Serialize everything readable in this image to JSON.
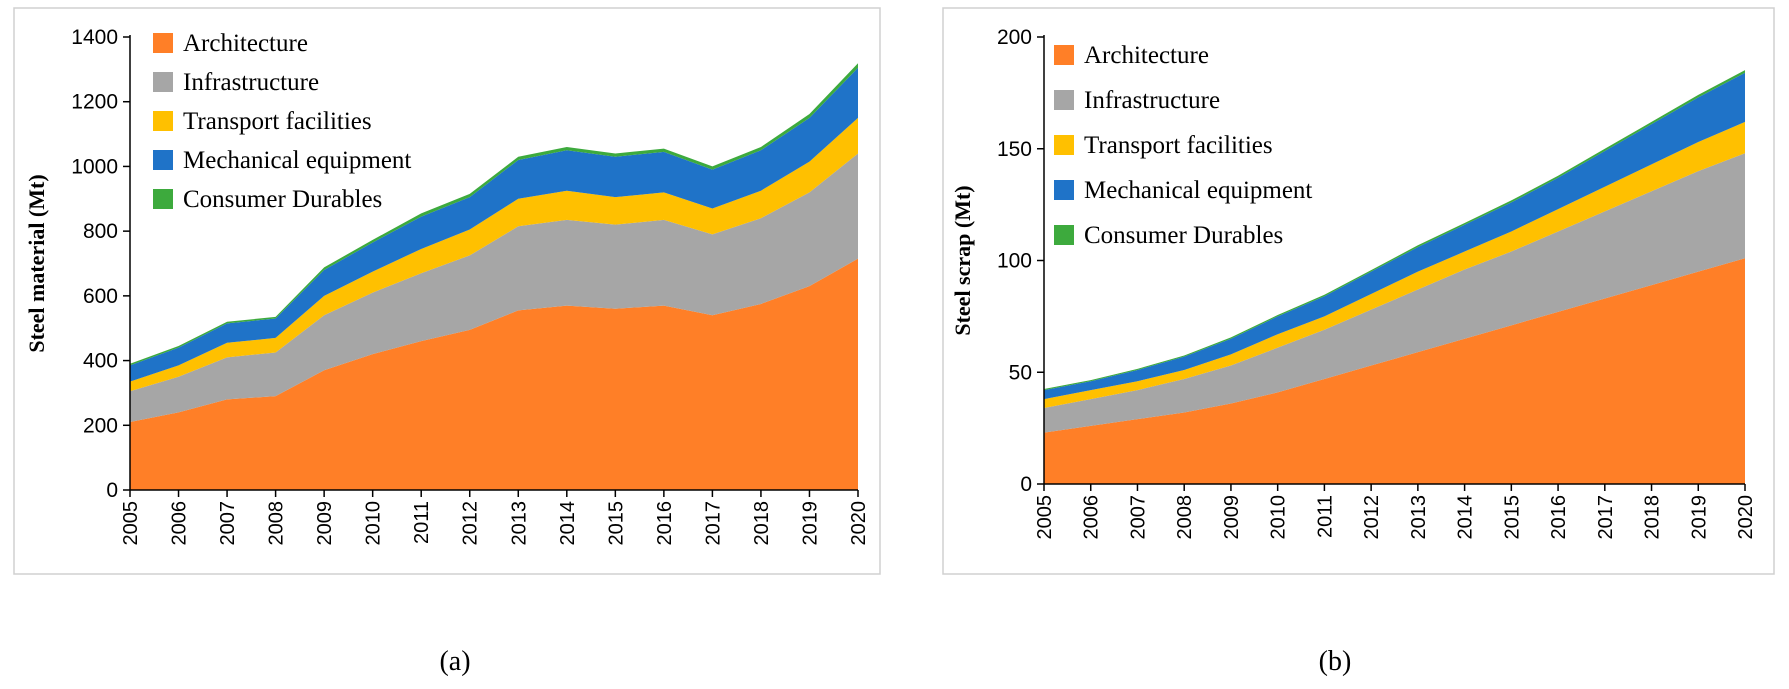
{
  "chart_data": [
    {
      "type": "area",
      "stacked": true,
      "caption": "(a)",
      "title": "",
      "xlabel": "",
      "ylabel": "Steel material  (Mt)",
      "ylim": [
        0,
        1400
      ],
      "yticks": [
        0,
        200,
        400,
        600,
        800,
        1000,
        1200,
        1400
      ],
      "x": [
        "2005",
        "2006",
        "2007",
        "2008",
        "2009",
        "2010",
        "2011",
        "2012",
        "2013",
        "2014",
        "2015",
        "2016",
        "2017",
        "2018",
        "2019",
        "2020"
      ],
      "legend_position": "top-left",
      "series": [
        {
          "name": "Architecture",
          "color": "#FF7F27",
          "values": [
            210,
            240,
            280,
            290,
            370,
            420,
            460,
            495,
            555,
            570,
            560,
            570,
            540,
            575,
            630,
            715
          ]
        },
        {
          "name": "Infrastructure",
          "color": "#A6A6A6",
          "values": [
            95,
            110,
            130,
            135,
            170,
            190,
            210,
            230,
            260,
            265,
            260,
            265,
            250,
            265,
            290,
            325
          ]
        },
        {
          "name": "Transport facilities",
          "color": "#FFC000",
          "values": [
            30,
            35,
            45,
            45,
            60,
            65,
            75,
            80,
            85,
            90,
            85,
            85,
            80,
            85,
            95,
            110
          ]
        },
        {
          "name": "Mechanical equipment",
          "color": "#1F73C8",
          "values": [
            50,
            55,
            60,
            60,
            80,
            90,
            100,
            100,
            120,
            125,
            125,
            125,
            120,
            125,
            135,
            155
          ]
        },
        {
          "name": "Consumer Durables",
          "color": "#3DAA3D",
          "values": [
            5,
            5,
            5,
            5,
            8,
            8,
            10,
            10,
            10,
            10,
            10,
            10,
            10,
            10,
            12,
            14
          ]
        }
      ]
    },
    {
      "type": "area",
      "stacked": true,
      "caption": "(b)",
      "title": "",
      "xlabel": "",
      "ylabel": "Steel scrap (Mt)",
      "ylim": [
        0,
        200
      ],
      "yticks": [
        0,
        50,
        100,
        150,
        200
      ],
      "x": [
        "2005",
        "2006",
        "2007",
        "2008",
        "2009",
        "2010",
        "2011",
        "2012",
        "2013",
        "2014",
        "2015",
        "2016",
        "2017",
        "2018",
        "2019",
        "2020"
      ],
      "legend_position": "top-left",
      "series": [
        {
          "name": "Architecture",
          "color": "#FF7F27",
          "values": [
            23,
            26,
            29,
            32,
            36,
            41,
            47,
            53,
            59,
            65,
            71,
            77,
            83,
            89,
            95,
            101
          ]
        },
        {
          "name": "Infrastructure",
          "color": "#A6A6A6",
          "values": [
            11,
            12,
            13,
            15,
            17,
            20,
            22,
            25,
            28,
            31,
            33,
            36,
            39,
            42,
            45,
            47
          ]
        },
        {
          "name": "Transport facilities",
          "color": "#FFC000",
          "values": [
            4,
            4,
            4,
            4,
            5,
            6,
            6,
            7,
            8,
            8,
            9,
            10,
            11,
            12,
            13,
            14
          ]
        },
        {
          "name": "Mechanical equipment",
          "color": "#1F73C8",
          "values": [
            4,
            4,
            5,
            6,
            7,
            8,
            9,
            10,
            11,
            12,
            13,
            14,
            16,
            18,
            20,
            22
          ]
        },
        {
          "name": "Consumer Durables",
          "color": "#3DAA3D",
          "values": [
            0.5,
            0.5,
            0.5,
            0.5,
            0.6,
            0.6,
            0.7,
            0.7,
            0.8,
            0.8,
            0.9,
            0.9,
            1,
            1,
            1.1,
            1.2
          ]
        }
      ]
    }
  ]
}
